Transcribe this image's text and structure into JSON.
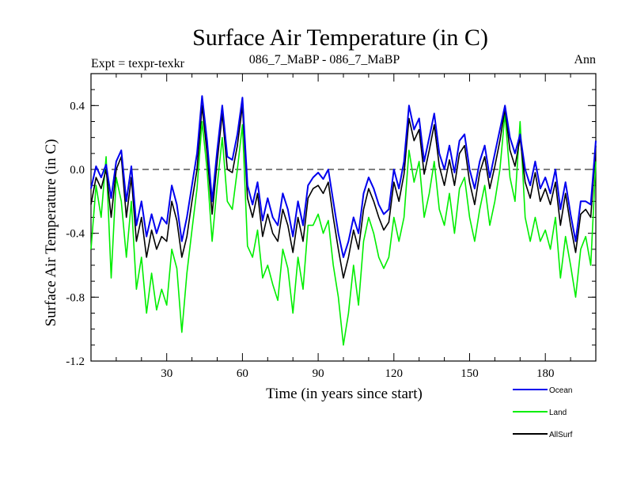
{
  "chart_data": {
    "type": "line",
    "title": "Surface Air Temperature (in C)",
    "subtitle_left": "Expt = texpr-texkr",
    "subtitle_center": "086_7_MaBP - 086_7_MaBP",
    "subtitle_right": "Ann",
    "xlabel": "Time (in years since start)",
    "ylabel": "Surface Air Temperature (in C)",
    "xlim": [
      0,
      200
    ],
    "ylim": [
      -1.2,
      0.6
    ],
    "x_ticks": [
      30,
      60,
      90,
      120,
      150,
      180
    ],
    "x_tick_labels": [
      "30",
      "60",
      "90",
      "120",
      "150",
      "180"
    ],
    "y_ticks": [
      -1.2,
      -0.8,
      -0.4,
      0.0,
      0.4
    ],
    "y_tick_labels": [
      "-1.2",
      "-0.8",
      "-0.4",
      "0.0",
      "0.4"
    ],
    "reference_line": 0.0,
    "legend_position": "bottom-right",
    "x": [
      0,
      2,
      4,
      6,
      8,
      10,
      12,
      14,
      16,
      18,
      20,
      22,
      24,
      26,
      28,
      30,
      32,
      34,
      36,
      38,
      40,
      42,
      44,
      46,
      48,
      50,
      52,
      54,
      56,
      58,
      60,
      62,
      64,
      66,
      68,
      70,
      72,
      74,
      76,
      78,
      80,
      82,
      84,
      86,
      88,
      90,
      92,
      94,
      96,
      98,
      100,
      102,
      104,
      106,
      108,
      110,
      112,
      114,
      116,
      118,
      120,
      122,
      124,
      126,
      128,
      130,
      132,
      134,
      136,
      138,
      140,
      142,
      144,
      146,
      148,
      150,
      152,
      154,
      156,
      158,
      160,
      162,
      164,
      166,
      168,
      170,
      172,
      174,
      176,
      178,
      180,
      182,
      184,
      186,
      188,
      190,
      192,
      194,
      196,
      198,
      200
    ],
    "series": [
      {
        "name": "Ocean",
        "color": "#0000ee",
        "values": [
          -0.12,
          0.02,
          -0.05,
          0.03,
          -0.18,
          0.05,
          0.12,
          -0.2,
          0.02,
          -0.35,
          -0.2,
          -0.42,
          -0.28,
          -0.4,
          -0.3,
          -0.34,
          -0.1,
          -0.22,
          -0.45,
          -0.3,
          -0.1,
          0.1,
          0.46,
          0.18,
          -0.2,
          0.12,
          0.4,
          0.08,
          0.06,
          0.22,
          0.45,
          -0.1,
          -0.22,
          -0.08,
          -0.32,
          -0.18,
          -0.3,
          -0.35,
          -0.15,
          -0.25,
          -0.42,
          -0.2,
          -0.35,
          -0.1,
          -0.05,
          -0.02,
          -0.06,
          0.0,
          -0.2,
          -0.4,
          -0.55,
          -0.45,
          -0.3,
          -0.4,
          -0.15,
          -0.05,
          -0.12,
          -0.22,
          -0.28,
          -0.25,
          0.0,
          -0.12,
          0.05,
          0.4,
          0.25,
          0.32,
          0.05,
          0.2,
          0.35,
          0.1,
          0.0,
          0.15,
          -0.02,
          0.18,
          0.22,
          0.0,
          -0.12,
          0.05,
          0.15,
          -0.05,
          0.1,
          0.25,
          0.4,
          0.2,
          0.1,
          0.22,
          0.0,
          -0.1,
          0.05,
          -0.12,
          -0.05,
          -0.15,
          0.0,
          -0.25,
          -0.08,
          -0.28,
          -0.45,
          -0.2,
          -0.2,
          -0.22,
          0.18
        ]
      },
      {
        "name": "Land",
        "color": "#00ee00",
        "values": [
          -0.5,
          -0.1,
          -0.3,
          0.08,
          -0.68,
          -0.05,
          -0.2,
          -0.55,
          -0.2,
          -0.75,
          -0.55,
          -0.9,
          -0.65,
          -0.88,
          -0.75,
          -0.85,
          -0.5,
          -0.62,
          -1.02,
          -0.65,
          -0.38,
          -0.12,
          0.3,
          0.0,
          -0.45,
          -0.1,
          0.2,
          -0.2,
          -0.25,
          0.0,
          0.28,
          -0.48,
          -0.55,
          -0.38,
          -0.68,
          -0.6,
          -0.72,
          -0.82,
          -0.5,
          -0.62,
          -0.9,
          -0.55,
          -0.75,
          -0.35,
          -0.35,
          -0.28,
          -0.4,
          -0.32,
          -0.6,
          -0.8,
          -1.1,
          -0.9,
          -0.6,
          -0.85,
          -0.45,
          -0.3,
          -0.4,
          -0.55,
          -0.62,
          -0.55,
          -0.3,
          -0.45,
          -0.3,
          0.12,
          -0.08,
          0.05,
          -0.3,
          -0.15,
          0.05,
          -0.25,
          -0.35,
          -0.15,
          -0.4,
          -0.12,
          -0.05,
          -0.3,
          -0.45,
          -0.25,
          -0.1,
          -0.35,
          -0.2,
          0.0,
          0.35,
          -0.05,
          -0.2,
          0.3,
          -0.3,
          -0.45,
          -0.3,
          -0.45,
          -0.38,
          -0.5,
          -0.3,
          -0.68,
          -0.42,
          -0.6,
          -0.8,
          -0.5,
          -0.42,
          -0.6,
          0.05
        ]
      },
      {
        "name": "AllSurf",
        "color": "#000000",
        "values": [
          -0.22,
          -0.05,
          -0.12,
          0.0,
          -0.3,
          0.0,
          0.08,
          -0.3,
          -0.05,
          -0.45,
          -0.3,
          -0.55,
          -0.38,
          -0.5,
          -0.42,
          -0.45,
          -0.2,
          -0.32,
          -0.55,
          -0.42,
          -0.2,
          0.0,
          0.4,
          0.1,
          -0.28,
          0.05,
          0.35,
          0.0,
          -0.02,
          0.15,
          0.4,
          -0.18,
          -0.3,
          -0.15,
          -0.42,
          -0.28,
          -0.4,
          -0.45,
          -0.25,
          -0.35,
          -0.52,
          -0.3,
          -0.45,
          -0.18,
          -0.12,
          -0.1,
          -0.15,
          -0.08,
          -0.3,
          -0.5,
          -0.68,
          -0.55,
          -0.38,
          -0.5,
          -0.25,
          -0.12,
          -0.2,
          -0.3,
          -0.38,
          -0.33,
          -0.08,
          -0.2,
          -0.03,
          0.32,
          0.18,
          0.25,
          -0.03,
          0.12,
          0.28,
          0.02,
          -0.1,
          0.06,
          -0.1,
          0.1,
          0.15,
          -0.08,
          -0.22,
          -0.02,
          0.08,
          -0.12,
          0.02,
          0.18,
          0.38,
          0.12,
          0.02,
          0.2,
          -0.08,
          -0.18,
          -0.02,
          -0.2,
          -0.12,
          -0.22,
          -0.08,
          -0.35,
          -0.15,
          -0.35,
          -0.52,
          -0.28,
          -0.25,
          -0.3,
          0.15
        ]
      }
    ]
  }
}
